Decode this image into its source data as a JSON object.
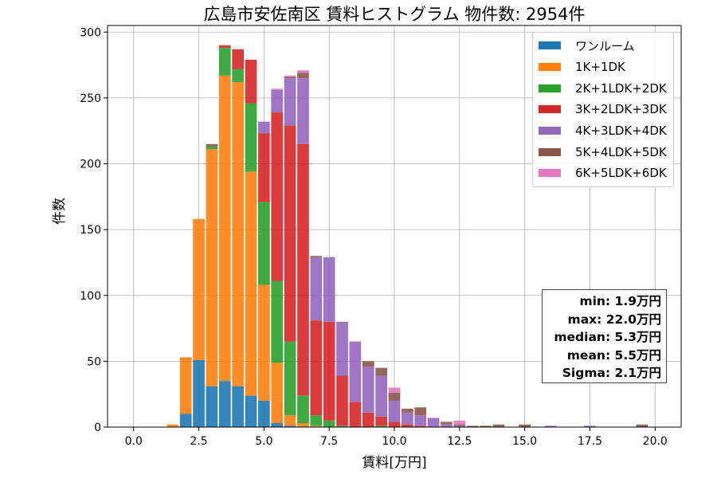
{
  "chart_data": {
    "type": "bar",
    "stacked": true,
    "title": "広島市安佐南区 賃料ヒストグラム 物件数: 2954件",
    "xlabel": "賃料[万円]",
    "ylabel": "件数",
    "xlim": [
      -1.0,
      21.0
    ],
    "ylim": [
      0,
      305
    ],
    "xticks": [
      0.0,
      2.5,
      5.0,
      7.5,
      10.0,
      12.5,
      15.0,
      17.5,
      20.0
    ],
    "xtick_labels": [
      "0.0",
      "2.5",
      "5.0",
      "7.5",
      "10.0",
      "12.5",
      "15.0",
      "17.5",
      "20.0"
    ],
    "yticks": [
      0,
      50,
      100,
      150,
      200,
      250,
      300
    ],
    "ytick_labels": [
      "0",
      "50",
      "100",
      "150",
      "200",
      "250",
      "300"
    ],
    "grid": true,
    "legend_position": "top-right",
    "bin_width": 0.5,
    "x": [
      1.5,
      2.0,
      2.5,
      3.0,
      3.5,
      4.0,
      4.5,
      5.0,
      5.5,
      6.0,
      6.5,
      7.0,
      7.5,
      8.0,
      8.5,
      9.0,
      9.5,
      10.0,
      10.5,
      11.0,
      11.5,
      12.0,
      12.5,
      13.0,
      13.5,
      14.0,
      15.0,
      16.0,
      17.5,
      19.5
    ],
    "series": [
      {
        "name": "ワンルーム",
        "color": "#1f77b4",
        "values": [
          0,
          10,
          51,
          31,
          35,
          31,
          24,
          20,
          3,
          1,
          0,
          0,
          0,
          0,
          0,
          0,
          0,
          0,
          0,
          0,
          0,
          0,
          0,
          0,
          0,
          0,
          0,
          0,
          0,
          0
        ]
      },
      {
        "name": "1K+1DK",
        "color": "#ff7f0e",
        "values": [
          2,
          43,
          107,
          180,
          232,
          231,
          170,
          88,
          46,
          8,
          3,
          1,
          0,
          0,
          0,
          0,
          0,
          0,
          0,
          0,
          0,
          0,
          0,
          0,
          0,
          0,
          0,
          0,
          0,
          0
        ]
      },
      {
        "name": "2K+1LDK+2DK",
        "color": "#2ca02c",
        "values": [
          0,
          0,
          0,
          2,
          21,
          10,
          52,
          63,
          62,
          56,
          21,
          8,
          5,
          1,
          0,
          0,
          1,
          0,
          0,
          0,
          0,
          0,
          0,
          0,
          0,
          0,
          0,
          0,
          0,
          0
        ]
      },
      {
        "name": "3K+2LDK+3DK",
        "color": "#d62728",
        "values": [
          0,
          0,
          0,
          0,
          2,
          15,
          33,
          52,
          128,
          164,
          191,
          72,
          75,
          38,
          19,
          11,
          7,
          4,
          2,
          1,
          0,
          0,
          0,
          0,
          0,
          0,
          0,
          0,
          0,
          0
        ]
      },
      {
        "name": "4K+3LDK+4DK",
        "color": "#9467bd",
        "values": [
          0,
          0,
          0,
          0,
          0,
          0,
          0,
          9,
          17,
          36,
          50,
          48,
          49,
          41,
          46,
          35,
          31,
          16,
          9,
          8,
          7,
          2,
          1,
          0,
          0,
          0,
          0,
          1,
          1,
          0
        ]
      },
      {
        "name": "5K+4LDK+5DK",
        "color": "#8c564b",
        "values": [
          0,
          0,
          0,
          2,
          0,
          0,
          0,
          0,
          0,
          1,
          4,
          1,
          0,
          0,
          0,
          4,
          6,
          6,
          3,
          6,
          0,
          2,
          1,
          1,
          1,
          2,
          2,
          0,
          0,
          2
        ]
      },
      {
        "name": "6K+5LDK+6DK",
        "color": "#e377c2",
        "values": [
          0,
          0,
          0,
          0,
          0,
          0,
          0,
          0,
          1,
          1,
          2,
          0,
          0,
          0,
          0,
          0,
          0,
          4,
          0,
          0,
          0,
          0,
          3,
          0,
          0,
          0,
          0,
          0,
          0,
          0
        ]
      }
    ],
    "stats": [
      "min: 1.9万円",
      "max: 22.0万円",
      "median: 5.3万円",
      "mean: 5.5万円",
      "Sigma: 2.1万円"
    ]
  }
}
